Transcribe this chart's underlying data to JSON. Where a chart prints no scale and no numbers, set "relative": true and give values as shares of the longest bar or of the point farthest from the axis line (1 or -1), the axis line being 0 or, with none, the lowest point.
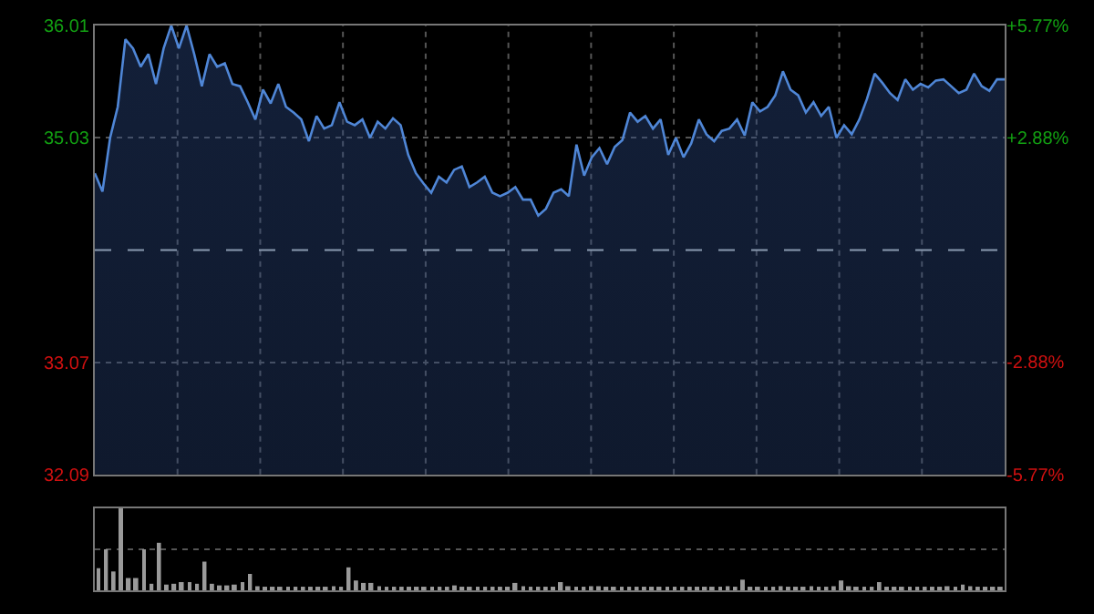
{
  "chart_data": [
    {
      "type": "area",
      "color": "#4f86d6",
      "grid": true,
      "tick_labels": "y",
      "categories": [
        null,
        null,
        null,
        null,
        null,
        null,
        null,
        null,
        null,
        null,
        null,
        null,
        null,
        null,
        null,
        null,
        null,
        null,
        null,
        null,
        null,
        null,
        null,
        null,
        null,
        null,
        null,
        null,
        null,
        null,
        null,
        null,
        null,
        null,
        null,
        null,
        null,
        null,
        null,
        null,
        null,
        null,
        null,
        null,
        null,
        null,
        null,
        null,
        null,
        null,
        null,
        null,
        null,
        null,
        null,
        null,
        null,
        null,
        null,
        null,
        null,
        null,
        null,
        null,
        null,
        null,
        null,
        null,
        null,
        null,
        null,
        null,
        null,
        null,
        null,
        null,
        null,
        null,
        null,
        null,
        null,
        null,
        null,
        null,
        null,
        null,
        null,
        null,
        null,
        null,
        null,
        null,
        null,
        null,
        null,
        null,
        null,
        null,
        null,
        null,
        null,
        null,
        null,
        null,
        null,
        null,
        null,
        null,
        null,
        null,
        null,
        null,
        null,
        null,
        null,
        null,
        null,
        null,
        null,
        null
      ],
      "values": [
        34.72,
        34.56,
        35.03,
        35.3,
        35.89,
        35.81,
        35.65,
        35.76,
        35.5,
        35.81,
        36.01,
        35.81,
        36.01,
        35.76,
        35.48,
        35.76,
        35.65,
        35.68,
        35.5,
        35.48,
        35.34,
        35.19,
        35.45,
        35.33,
        35.5,
        35.3,
        35.25,
        35.19,
        35.0,
        35.22,
        35.11,
        35.14,
        35.34,
        35.17,
        35.14,
        35.19,
        35.03,
        35.17,
        35.11,
        35.2,
        35.14,
        34.88,
        34.72,
        34.63,
        34.55,
        34.69,
        34.64,
        34.75,
        34.78,
        34.6,
        34.64,
        34.69,
        34.55,
        34.52,
        34.55,
        34.6,
        34.49,
        34.49,
        34.35,
        34.41,
        34.55,
        34.58,
        34.52,
        34.97,
        34.7,
        34.86,
        34.94,
        34.8,
        34.95,
        35.01,
        35.25,
        35.17,
        35.22,
        35.11,
        35.19,
        34.88,
        35.03,
        34.86,
        34.98,
        35.19,
        35.06,
        35.0,
        35.09,
        35.11,
        35.19,
        35.05,
        35.34,
        35.26,
        35.3,
        35.4,
        35.61,
        35.45,
        35.4,
        35.25,
        35.34,
        35.22,
        35.3,
        35.03,
        35.14,
        35.06,
        35.19,
        35.37,
        35.59,
        35.51,
        35.42,
        35.36,
        35.54,
        35.45,
        35.5,
        35.47,
        35.53,
        35.54,
        35.48,
        35.42,
        35.45,
        35.59,
        35.48,
        35.44,
        35.54,
        35.54
      ],
      "ylim": [
        32.09,
        36.01
      ],
      "yticks": [
        32.09,
        33.07,
        35.03,
        36.01
      ],
      "y2lim": [
        -5.77,
        5.77
      ],
      "y2ticks": [
        {
          "value": -5.77,
          "label": "-5.77%"
        },
        {
          "value": -2.88,
          "label": "-2.88%"
        },
        {
          "value": 2.88,
          "label": "+2.88%"
        },
        {
          "value": 5.77,
          "label": "+5.77%"
        }
      ],
      "ref_lines": [
        {
          "axis": "y",
          "value": 34.05,
          "line_style": "dashed",
          "color": "#8a9ab0"
        }
      ]
    },
    {
      "type": "bar",
      "relative": true,
      "color": "#9a9a9a",
      "tick_labels": false,
      "ref_lines": [
        {
          "axis": "y",
          "value": 0.5,
          "line_style": "dotted",
          "color": "#555555"
        }
      ],
      "categories": [
        null,
        null,
        null,
        null,
        null,
        null,
        null,
        null,
        null,
        null,
        null,
        null,
        null,
        null,
        null,
        null,
        null,
        null,
        null,
        null,
        null,
        null,
        null,
        null,
        null,
        null,
        null,
        null,
        null,
        null,
        null,
        null,
        null,
        null,
        null,
        null,
        null,
        null,
        null,
        null,
        null,
        null,
        null,
        null,
        null,
        null,
        null,
        null,
        null,
        null,
        null,
        null,
        null,
        null,
        null,
        null,
        null,
        null,
        null,
        null,
        null,
        null,
        null,
        null,
        null,
        null,
        null,
        null,
        null,
        null,
        null,
        null,
        null,
        null,
        null,
        null,
        null,
        null,
        null,
        null,
        null,
        null,
        null,
        null,
        null,
        null,
        null,
        null,
        null,
        null,
        null,
        null,
        null,
        null,
        null,
        null,
        null,
        null,
        null,
        null,
        null,
        null,
        null,
        null,
        null,
        null,
        null,
        null,
        null,
        null,
        null,
        null,
        null,
        null,
        null,
        null,
        null,
        null,
        null,
        null
      ],
      "values": [
        0.27,
        0.5,
        0.23,
        1.0,
        0.15,
        0.15,
        0.5,
        0.08,
        0.58,
        0.07,
        0.08,
        0.1,
        0.1,
        0.08,
        0.35,
        0.08,
        0.06,
        0.06,
        0.07,
        0.1,
        0.2,
        0.05,
        0.03,
        0.04,
        0.03,
        0.04,
        0.03,
        0.04,
        0.03,
        0.04,
        0.03,
        0.05,
        0.04,
        0.28,
        0.12,
        0.09,
        0.09,
        0.05,
        0.04,
        0.03,
        0.04,
        0.03,
        0.04,
        0.04,
        0.03,
        0.04,
        0.03,
        0.06,
        0.04,
        0.03,
        0.04,
        0.03,
        0.04,
        0.03,
        0.04,
        0.09,
        0.05,
        0.04,
        0.03,
        0.04,
        0.04,
        0.1,
        0.05,
        0.04,
        0.04,
        0.05,
        0.05,
        0.03,
        0.04,
        0.03,
        0.04,
        0.03,
        0.04,
        0.04,
        0.03,
        0.04,
        0.03,
        0.04,
        0.03,
        0.04,
        0.04,
        0.03,
        0.04,
        0.05,
        0.04,
        0.13,
        0.04,
        0.03,
        0.04,
        0.04,
        0.05,
        0.04,
        0.03,
        0.04,
        0.05,
        0.04,
        0.04,
        0.05,
        0.12,
        0.05,
        0.04,
        0.04,
        0.04,
        0.1,
        0.04,
        0.03,
        0.04,
        0.04,
        0.03,
        0.04,
        0.03,
        0.04,
        0.05,
        0.04,
        0.07,
        0.05,
        0.04,
        0.04,
        0.03,
        0.04
      ]
    }
  ]
}
